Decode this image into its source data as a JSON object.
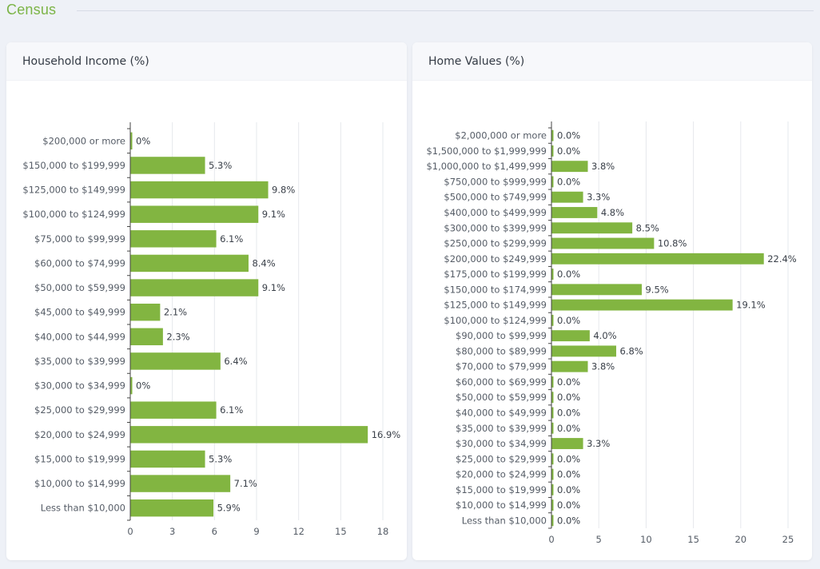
{
  "section": {
    "title": "Census"
  },
  "cards": {
    "income": {
      "title": "Household Income (%)"
    },
    "home": {
      "title": "Home Values (%)"
    }
  },
  "colors": {
    "accent": "#7bb446",
    "bar": "#82b541",
    "grid": "#e6e8ec"
  },
  "chart_data": [
    {
      "type": "bar",
      "orientation": "horizontal",
      "title": "Household Income (%)",
      "categories": [
        "$200,000 or more",
        "$150,000 to $199,999",
        "$125,000 to $149,999",
        "$100,000 to $124,999",
        "$75,000 to $99,999",
        "$60,000 to $74,999",
        "$50,000 to $59,999",
        "$45,000 to $49,999",
        "$40,000 to $44,999",
        "$35,000 to $39,999",
        "$30,000 to $34,999",
        "$25,000 to $29,999",
        "$20,000 to $24,999",
        "$15,000 to $19,999",
        "$10,000 to $14,999",
        "Less than $10,000"
      ],
      "values": [
        0,
        5.3,
        9.8,
        9.1,
        6.1,
        8.4,
        9.1,
        2.1,
        2.3,
        6.4,
        0,
        6.1,
        16.9,
        5.3,
        7.1,
        5.9
      ],
      "value_labels": [
        "0%",
        "5.3%",
        "9.8%",
        "9.1%",
        "6.1%",
        "8.4%",
        "9.1%",
        "2.1%",
        "2.3%",
        "6.4%",
        "0%",
        "6.1%",
        "16.9%",
        "5.3%",
        "7.1%",
        "5.9%"
      ],
      "xlim": [
        0,
        18
      ],
      "xticks": [
        "0",
        "3",
        "6",
        "9",
        "12",
        "15",
        "18"
      ],
      "grid": true
    },
    {
      "type": "bar",
      "orientation": "horizontal",
      "title": "Home Values (%)",
      "categories": [
        "$2,000,000 or more",
        "$1,500,000 to $1,999,999",
        "$1,000,000 to $1,499,999",
        "$750,000 to $999,999",
        "$500,000 to $749,999",
        "$400,000 to $499,999",
        "$300,000 to $399,999",
        "$250,000 to $299,999",
        "$200,000 to $249,999",
        "$175,000 to $199,999",
        "$150,000 to $174,999",
        "$125,000 to $149,999",
        "$100,000 to $124,999",
        "$90,000 to $99,999",
        "$80,000 to $89,999",
        "$70,000 to $79,999",
        "$60,000 to $69,999",
        "$50,000 to $59,999",
        "$40,000 to $49,999",
        "$35,000 to $39,999",
        "$30,000 to $34,999",
        "$25,000 to $29,999",
        "$20,000 to $24,999",
        "$15,000 to $19,999",
        "$10,000 to $14,999",
        "Less than $10,000"
      ],
      "values": [
        0,
        0,
        3.8,
        0,
        3.3,
        4.8,
        8.5,
        10.8,
        22.4,
        0,
        9.5,
        19.1,
        0,
        4.0,
        6.8,
        3.8,
        0,
        0,
        0,
        0,
        3.3,
        0,
        0,
        0,
        0,
        0
      ],
      "value_labels": [
        "0.0%",
        "0.0%",
        "3.8%",
        "0.0%",
        "3.3%",
        "4.8%",
        "8.5%",
        "10.8%",
        "22.4%",
        "0.0%",
        "9.5%",
        "19.1%",
        "0.0%",
        "4.0%",
        "6.8%",
        "3.8%",
        "0.0%",
        "0.0%",
        "0.0%",
        "0.0%",
        "3.3%",
        "0.0%",
        "0.0%",
        "0.0%",
        "0.0%",
        "0.0%"
      ],
      "xlim": [
        0,
        25
      ],
      "xticks": [
        "0",
        "5",
        "10",
        "15",
        "20",
        "25"
      ],
      "grid": true
    }
  ]
}
